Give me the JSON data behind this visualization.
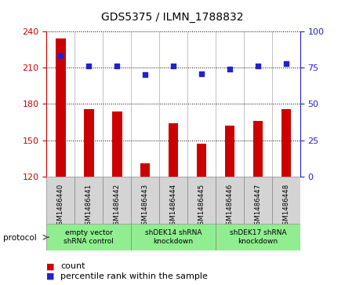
{
  "title": "GDS5375 / ILMN_1788832",
  "samples": [
    "GSM1486440",
    "GSM1486441",
    "GSM1486442",
    "GSM1486443",
    "GSM1486444",
    "GSM1486445",
    "GSM1486446",
    "GSM1486447",
    "GSM1486448"
  ],
  "counts": [
    234,
    176,
    174,
    131,
    164,
    147,
    162,
    166,
    176
  ],
  "percentiles": [
    83,
    76,
    76,
    70,
    76,
    71,
    74,
    76,
    78
  ],
  "ylim_left": [
    120,
    240
  ],
  "yticks_left": [
    120,
    150,
    180,
    210,
    240
  ],
  "ylim_right": [
    0,
    100
  ],
  "yticks_right": [
    0,
    25,
    50,
    75,
    100
  ],
  "bar_color": "#cc0000",
  "dot_color": "#2222cc",
  "bar_bottom": 120,
  "groups": [
    {
      "label": "empty vector\nshRNA control",
      "start": 0,
      "end": 3
    },
    {
      "label": "shDEK14 shRNA\nknockdown",
      "start": 3,
      "end": 6
    },
    {
      "label": "shDEK17 shRNA\nknockdown",
      "start": 6,
      "end": 9
    }
  ],
  "protocol_label": "protocol",
  "legend_count_label": "count",
  "legend_percentile_label": "percentile rank within the sample",
  "tick_color_left": "#cc0000",
  "tick_color_right": "#2222cc",
  "background_color": "#ffffff",
  "plot_bg_color": "#ffffff",
  "label_box_color": "#d4d4d4",
  "group_box_color": "#90ee90",
  "group_box_edge": "#888888"
}
